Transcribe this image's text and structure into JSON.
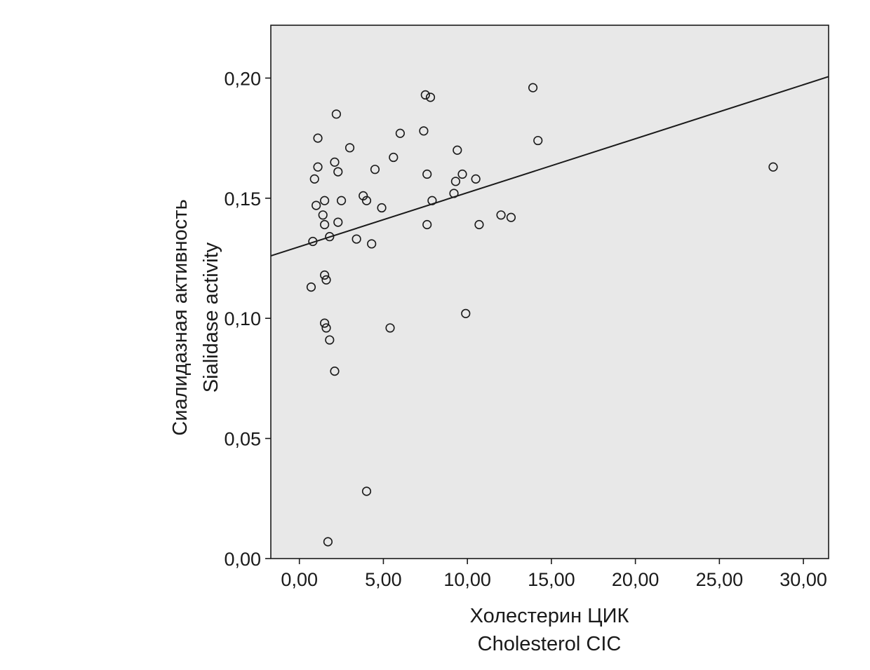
{
  "chart_data": {
    "type": "scatter",
    "title": "",
    "xlabel": [
      "Холестерин ЦИК",
      "Cholesterol CIC"
    ],
    "ylabel": [
      "Сиалидазная активность",
      "Sialidase activity"
    ],
    "xlim": [
      -1.7,
      31.5
    ],
    "ylim": [
      0.0,
      0.222
    ],
    "x_ticks": [
      "0,00",
      "5,00",
      "10,00",
      "15,00",
      "20,00",
      "25,00",
      "30,00"
    ],
    "x_tick_values": [
      0,
      5,
      10,
      15,
      20,
      25,
      30
    ],
    "y_ticks": [
      "0,00",
      "0,05",
      "0,10",
      "0,15",
      "0,20"
    ],
    "y_tick_values": [
      0.0,
      0.05,
      0.1,
      0.15,
      0.2
    ],
    "grid": false,
    "background": "#e8e8e8",
    "marker": "open-circle",
    "fit_line": {
      "type": "linear",
      "x": [
        -1.7,
        31.5
      ],
      "y": [
        0.126,
        0.2006
      ]
    },
    "points": [
      {
        "x": 0.7,
        "y": 0.113
      },
      {
        "x": 0.8,
        "y": 0.132
      },
      {
        "x": 0.9,
        "y": 0.158
      },
      {
        "x": 1.0,
        "y": 0.147
      },
      {
        "x": 1.1,
        "y": 0.175
      },
      {
        "x": 1.1,
        "y": 0.163
      },
      {
        "x": 1.4,
        "y": 0.143
      },
      {
        "x": 1.5,
        "y": 0.149
      },
      {
        "x": 1.5,
        "y": 0.139
      },
      {
        "x": 1.5,
        "y": 0.118
      },
      {
        "x": 1.6,
        "y": 0.116
      },
      {
        "x": 1.5,
        "y": 0.098
      },
      {
        "x": 1.6,
        "y": 0.096
      },
      {
        "x": 1.8,
        "y": 0.134
      },
      {
        "x": 1.8,
        "y": 0.091
      },
      {
        "x": 1.7,
        "y": 0.007
      },
      {
        "x": 2.1,
        "y": 0.165
      },
      {
        "x": 2.2,
        "y": 0.185
      },
      {
        "x": 2.3,
        "y": 0.161
      },
      {
        "x": 2.3,
        "y": 0.14
      },
      {
        "x": 2.5,
        "y": 0.149
      },
      {
        "x": 2.1,
        "y": 0.078
      },
      {
        "x": 3.0,
        "y": 0.171
      },
      {
        "x": 3.4,
        "y": 0.133
      },
      {
        "x": 3.8,
        "y": 0.151
      },
      {
        "x": 4.0,
        "y": 0.149
      },
      {
        "x": 4.3,
        "y": 0.131
      },
      {
        "x": 4.5,
        "y": 0.162
      },
      {
        "x": 4.0,
        "y": 0.028
      },
      {
        "x": 4.9,
        "y": 0.146
      },
      {
        "x": 5.4,
        "y": 0.096
      },
      {
        "x": 5.6,
        "y": 0.167
      },
      {
        "x": 6.0,
        "y": 0.177
      },
      {
        "x": 7.4,
        "y": 0.178
      },
      {
        "x": 7.5,
        "y": 0.193
      },
      {
        "x": 7.8,
        "y": 0.192
      },
      {
        "x": 7.6,
        "y": 0.16
      },
      {
        "x": 7.9,
        "y": 0.149
      },
      {
        "x": 7.6,
        "y": 0.139
      },
      {
        "x": 9.2,
        "y": 0.152
      },
      {
        "x": 9.3,
        "y": 0.157
      },
      {
        "x": 9.4,
        "y": 0.17
      },
      {
        "x": 9.7,
        "y": 0.16
      },
      {
        "x": 9.9,
        "y": 0.102
      },
      {
        "x": 10.5,
        "y": 0.158
      },
      {
        "x": 10.7,
        "y": 0.139
      },
      {
        "x": 12.0,
        "y": 0.143
      },
      {
        "x": 12.6,
        "y": 0.142
      },
      {
        "x": 13.9,
        "y": 0.196
      },
      {
        "x": 14.2,
        "y": 0.174
      },
      {
        "x": 28.2,
        "y": 0.163
      }
    ]
  }
}
